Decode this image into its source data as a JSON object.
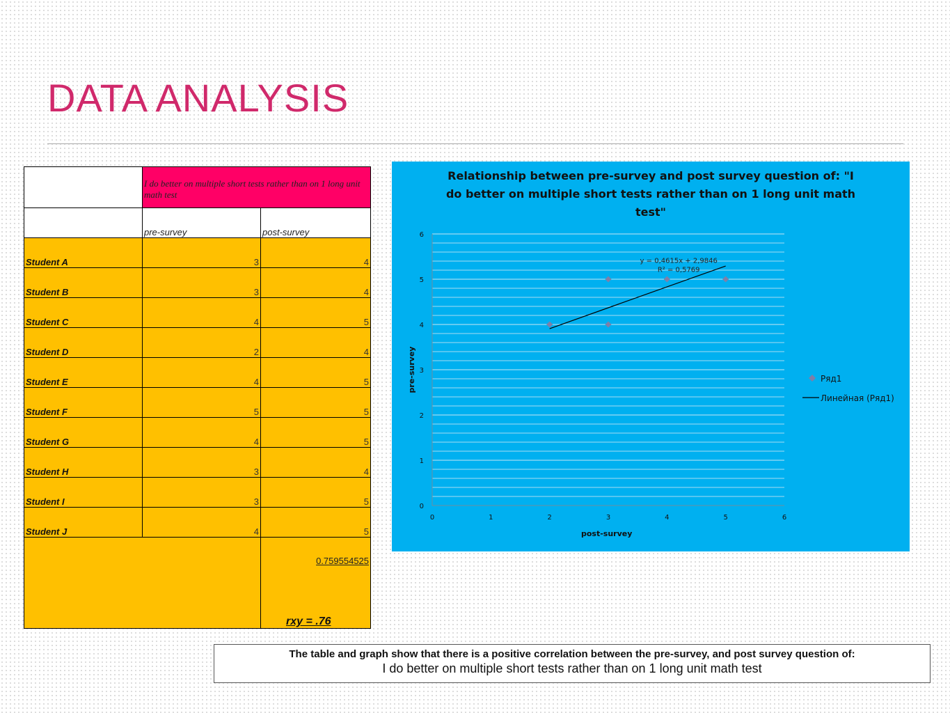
{
  "slide": {
    "title": "DATA ANALYSIS"
  },
  "table": {
    "header_question": "I do better on multiple short tests rather than on 1 long unit math test",
    "col_pre": "pre-survey",
    "col_post": "post-survey",
    "rows": [
      {
        "student": "Student A",
        "pre": "3",
        "post": "4"
      },
      {
        "student": "Student B",
        "pre": "3",
        "post": "4"
      },
      {
        "student": "Student C",
        "pre": "4",
        "post": "5"
      },
      {
        "student": "Student D",
        "pre": "2",
        "post": "4"
      },
      {
        "student": "Student E",
        "pre": "4",
        "post": "5"
      },
      {
        "student": "Student F",
        "pre": "5",
        "post": "5"
      },
      {
        "student": "Student G",
        "pre": "4",
        "post": "5"
      },
      {
        "student": "Student H",
        "pre": "3",
        "post": "4"
      },
      {
        "student": "Student I",
        "pre": "3",
        "post": "5"
      },
      {
        "student": "Student J",
        "pre": "4",
        "post": "5"
      }
    ],
    "correlation": "0.759554525",
    "rxy": "rxy = .76"
  },
  "chart_data": {
    "type": "scatter",
    "title_lines": [
      "Relationship between pre-survey and post survey question of: \"I",
      "do better on multiple short tests rather than on 1 long unit math",
      "test\""
    ],
    "xlabel": "post-survey",
    "ylabel": "pre-survey",
    "xlim": [
      0,
      6
    ],
    "ylim": [
      0,
      6
    ],
    "xticks": [
      "0",
      "1",
      "2",
      "3",
      "4",
      "5",
      "6"
    ],
    "yticks": [
      "0",
      "1",
      "2",
      "3",
      "4",
      "5",
      "6"
    ],
    "grid": true,
    "legend_position": "right",
    "series": [
      {
        "name": "Ряд1",
        "marker": "diamond",
        "color": "#7f7fa8",
        "points": [
          [
            2,
            4
          ],
          [
            3,
            4
          ],
          [
            3,
            5
          ],
          [
            4,
            5
          ],
          [
            5,
            5
          ]
        ]
      }
    ],
    "trendline": {
      "name": "Линейная (Ряд1)",
      "slope": 0.4615,
      "intercept": 2.9846,
      "x_range": [
        2,
        5
      ],
      "equation": "y = 0,4615x + 2,9846",
      "r2": "R² = 0,5769"
    },
    "background_color": "#00b0f0"
  },
  "caption": {
    "line1": "The table and graph show that there is a positive correlation between the pre-survey, and post survey question of:",
    "line2": "I do better on multiple short tests rather than on 1 long unit math test"
  }
}
